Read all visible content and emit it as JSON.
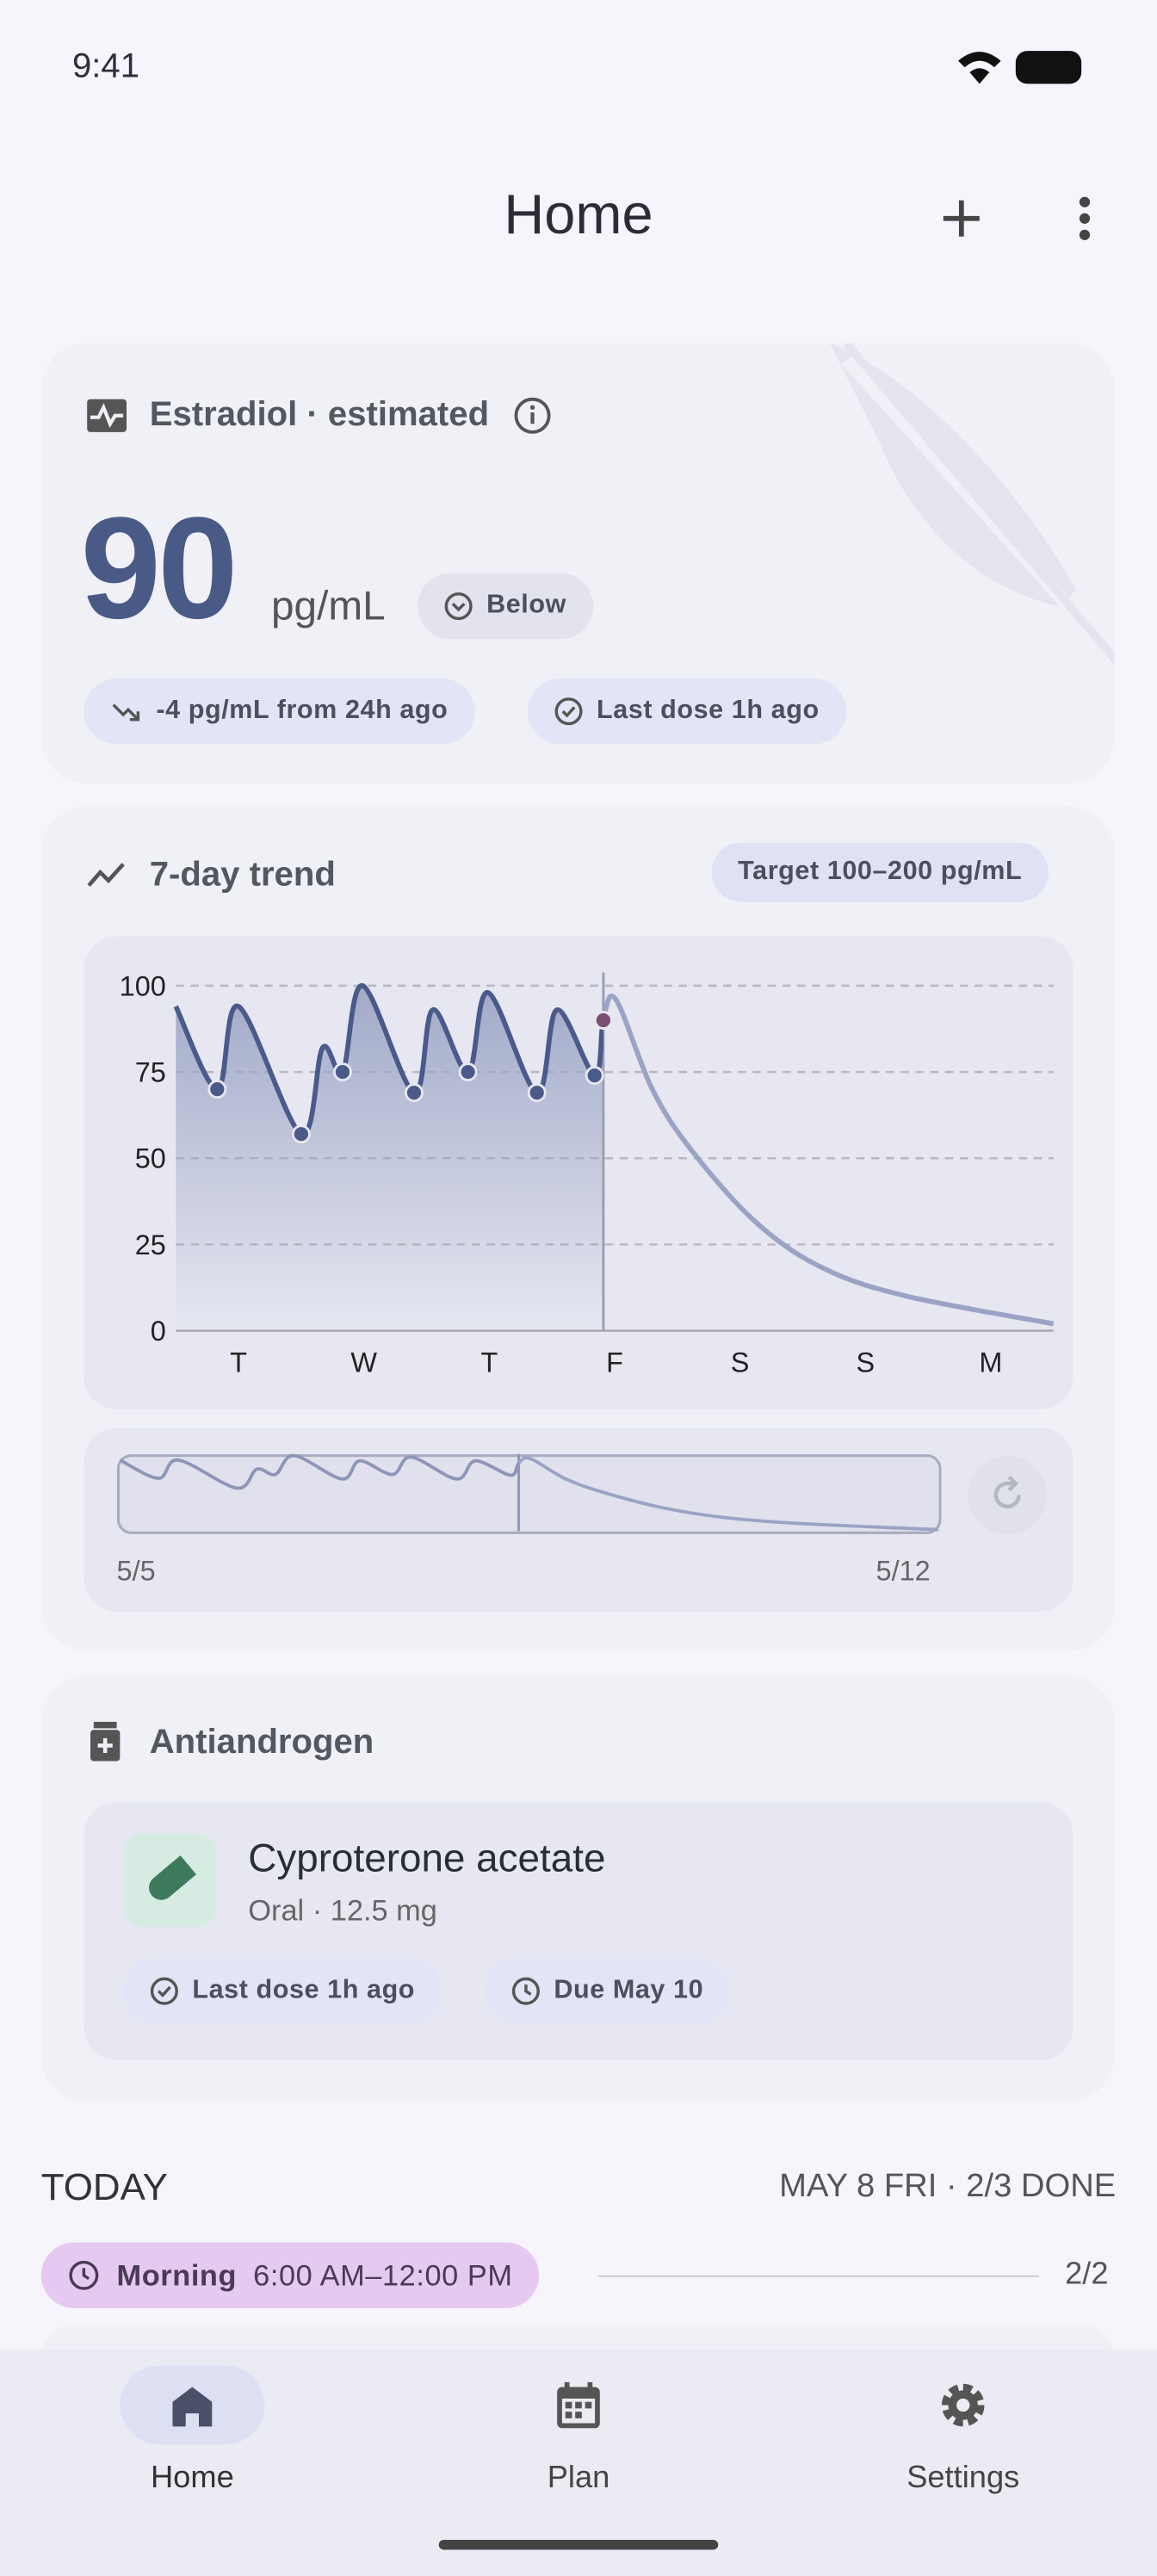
{
  "status_bar": {
    "time": "9:41"
  },
  "app_bar": {
    "title": "Home"
  },
  "estradiol": {
    "title": "Estradiol · estimated",
    "value": "90",
    "unit": "pg/mL",
    "status": "Below",
    "change": "-4 pg/mL from 24h ago",
    "last_dose": "Last dose 1h ago"
  },
  "trend": {
    "title": "7-day trend",
    "target": "Target 100–200 pg/mL",
    "chart_data": {
      "type": "line",
      "categories": [
        "T",
        "W",
        "T",
        "F",
        "S",
        "S",
        "M"
      ],
      "xlim": [
        0,
        7
      ],
      "ylim": [
        0,
        100
      ],
      "yticks": [
        0,
        25,
        50,
        75,
        100
      ],
      "grid": true,
      "now_x": 3.41,
      "x": [
        0,
        0.33,
        0.5,
        1.0,
        1.17,
        1.33,
        1.49,
        1.9,
        2.05,
        2.33,
        2.49,
        2.88,
        3.04,
        3.34,
        3.41,
        3.51,
        3.8,
        4.12,
        4.64,
        5.17,
        5.83,
        7.0
      ],
      "values": [
        94,
        70,
        94,
        57,
        82,
        75,
        100,
        69,
        93,
        75,
        98,
        69,
        93,
        74,
        90,
        96,
        70,
        52,
        31,
        18,
        10,
        2
      ]
    },
    "range": {
      "start": "5/5",
      "end": "5/12"
    }
  },
  "antiandrogen": {
    "title": "Antiandrogen",
    "name": "Cyproterone acetate",
    "detail": "Oral · 12.5 mg",
    "last_dose": "Last dose 1h ago",
    "due": "Due May 10"
  },
  "today": {
    "title": "TODAY",
    "summary": "MAY 8 FRI · 2/3 DONE",
    "slot": "Morning",
    "time": "6:00 AM–12:00 PM",
    "count": "2/2"
  },
  "nav": [
    {
      "label": "Home"
    },
    {
      "label": "Plan"
    },
    {
      "label": "Settings"
    }
  ]
}
